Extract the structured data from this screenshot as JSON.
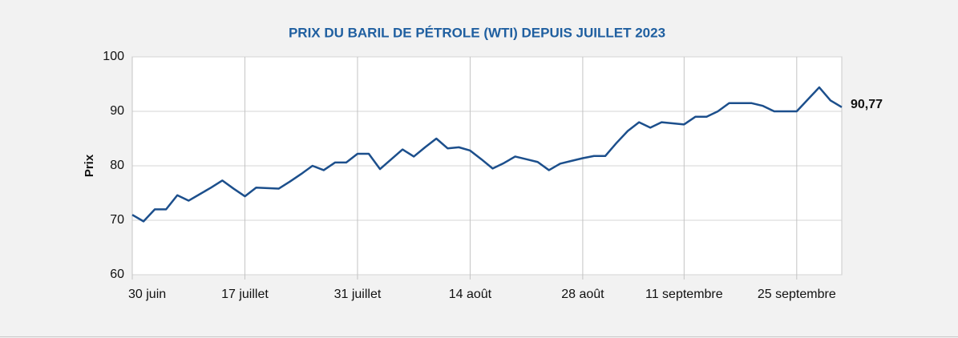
{
  "chart_data": {
    "type": "line",
    "title": "PRIX DU BARIL DE PÉTROLE (WTI) DEPUIS JUILLET 2023",
    "y_label": "Prix",
    "categories": [
      "30 juin",
      null,
      null,
      null,
      null,
      null,
      null,
      null,
      null,
      null,
      "17 juillet",
      null,
      null,
      null,
      null,
      null,
      null,
      null,
      null,
      null,
      "31 juillet",
      null,
      null,
      null,
      null,
      null,
      null,
      null,
      null,
      null,
      "14 août",
      null,
      null,
      null,
      null,
      null,
      null,
      null,
      null,
      null,
      "28 août",
      null,
      null,
      null,
      null,
      null,
      null,
      null,
      null,
      "11 septembre",
      null,
      null,
      null,
      null,
      null,
      null,
      null,
      null,
      null,
      "25 septembre",
      null,
      null,
      null,
      null
    ],
    "series": [
      {
        "name": "WTI",
        "color": "#1c4f8c",
        "values": [
          71.0,
          69.8,
          72.0,
          72.0,
          74.6,
          73.6,
          74.8,
          76.0,
          77.3,
          75.8,
          74.4,
          76.0,
          75.9,
          75.8,
          77.1,
          78.5,
          80.0,
          79.2,
          80.6,
          80.6,
          82.2,
          82.2,
          79.4,
          81.2,
          83.0,
          81.7,
          83.4,
          85.0,
          83.2,
          83.4,
          82.8,
          81.2,
          79.5,
          80.5,
          81.7,
          81.2,
          80.7,
          79.2,
          80.4,
          80.9,
          81.4,
          81.8,
          81.8,
          84.2,
          86.4,
          88.0,
          87.0,
          88.0,
          87.8,
          87.6,
          89.0,
          89.0,
          90.0,
          91.5,
          91.5,
          91.5,
          91.0,
          90.0,
          90.0,
          90.0,
          92.2,
          94.4,
          92.0,
          90.77
        ],
        "value_labels": [
          null,
          null,
          null,
          null,
          null,
          null,
          null,
          null,
          null,
          null,
          null,
          null,
          null,
          null,
          null,
          null,
          null,
          null,
          null,
          null,
          null,
          null,
          null,
          null,
          null,
          null,
          null,
          null,
          null,
          null,
          null,
          null,
          null,
          null,
          null,
          null,
          null,
          null,
          null,
          null,
          null,
          null,
          null,
          null,
          null,
          null,
          null,
          null,
          null,
          null,
          null,
          null,
          null,
          null,
          null,
          null,
          null,
          null,
          null,
          null,
          null,
          null,
          null,
          "90,77"
        ]
      }
    ],
    "ylim": [
      60,
      100
    ],
    "yticks": [
      60,
      70,
      80,
      90,
      100
    ],
    "grid": true
  }
}
